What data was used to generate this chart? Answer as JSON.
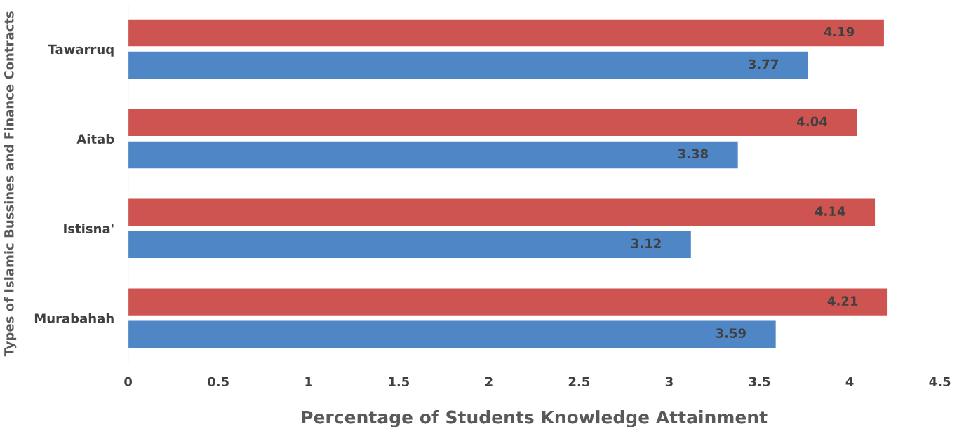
{
  "chart_data": {
    "type": "bar",
    "orientation": "horizontal",
    "xlabel": "Percentage of Students Knowledge Attainment",
    "ylabel": "Types of Islamic Bussines and Finance Contracts",
    "categories": [
      "Tawarruq",
      "Aitab",
      "Istisna'",
      "Murabahah"
    ],
    "series": [
      {
        "color": "#cd5450",
        "values": [
          4.19,
          4.04,
          4.14,
          4.21
        ]
      },
      {
        "color": "#4f86c6",
        "values": [
          3.77,
          3.38,
          3.12,
          3.59
        ]
      }
    ],
    "xlim": [
      0,
      4.5
    ],
    "xticks": [
      0,
      0.5,
      1,
      1.5,
      2,
      2.5,
      3,
      3.5,
      4,
      4.5
    ],
    "data_labels": true,
    "grid": false,
    "legend": false
  }
}
